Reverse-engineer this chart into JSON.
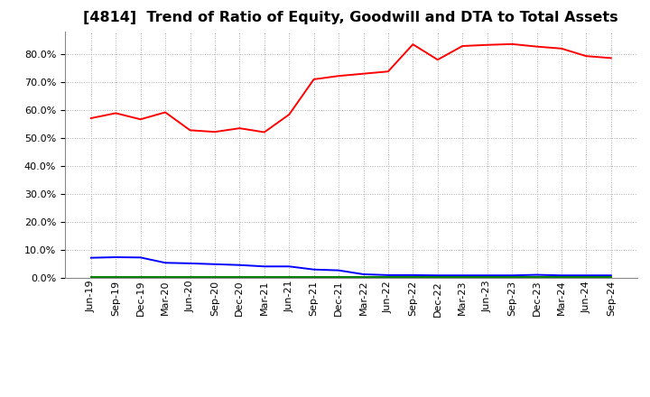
{
  "title": "[4814]  Trend of Ratio of Equity, Goodwill and DTA to Total Assets",
  "x_labels": [
    "Jun-19",
    "Sep-19",
    "Dec-19",
    "Mar-20",
    "Jun-20",
    "Sep-20",
    "Dec-20",
    "Mar-21",
    "Jun-21",
    "Sep-21",
    "Dec-21",
    "Mar-22",
    "Jun-22",
    "Sep-22",
    "Dec-22",
    "Mar-23",
    "Jun-23",
    "Sep-23",
    "Dec-23",
    "Mar-24",
    "Jun-24",
    "Sep-24"
  ],
  "equity": [
    0.571,
    0.589,
    0.567,
    0.592,
    0.528,
    0.522,
    0.535,
    0.521,
    0.584,
    0.71,
    0.722,
    0.73,
    0.738,
    0.835,
    0.78,
    0.829,
    0.833,
    0.836,
    0.827,
    0.82,
    0.793,
    0.786
  ],
  "goodwill": [
    0.072,
    0.074,
    0.073,
    0.054,
    0.052,
    0.049,
    0.046,
    0.041,
    0.041,
    0.03,
    0.027,
    0.013,
    0.01,
    0.01,
    0.009,
    0.009,
    0.009,
    0.009,
    0.011,
    0.009,
    0.009,
    0.009
  ],
  "dta": [
    0.002,
    0.002,
    0.002,
    0.002,
    0.002,
    0.002,
    0.002,
    0.002,
    0.002,
    0.002,
    0.002,
    0.002,
    0.002,
    0.002,
    0.002,
    0.002,
    0.002,
    0.002,
    0.002,
    0.002,
    0.002,
    0.002
  ],
  "equity_color": "#FF0000",
  "goodwill_color": "#0000FF",
  "dta_color": "#008000",
  "ylim": [
    0.0,
    0.88
  ],
  "yticks": [
    0.0,
    0.1,
    0.2,
    0.3,
    0.4,
    0.5,
    0.6,
    0.7,
    0.8
  ],
  "background_color": "#FFFFFF",
  "plot_bg_color": "#FFFFFF",
  "grid_color": "#AAAAAA",
  "title_fontsize": 11.5,
  "tick_fontsize": 8,
  "legend_fontsize": 9
}
